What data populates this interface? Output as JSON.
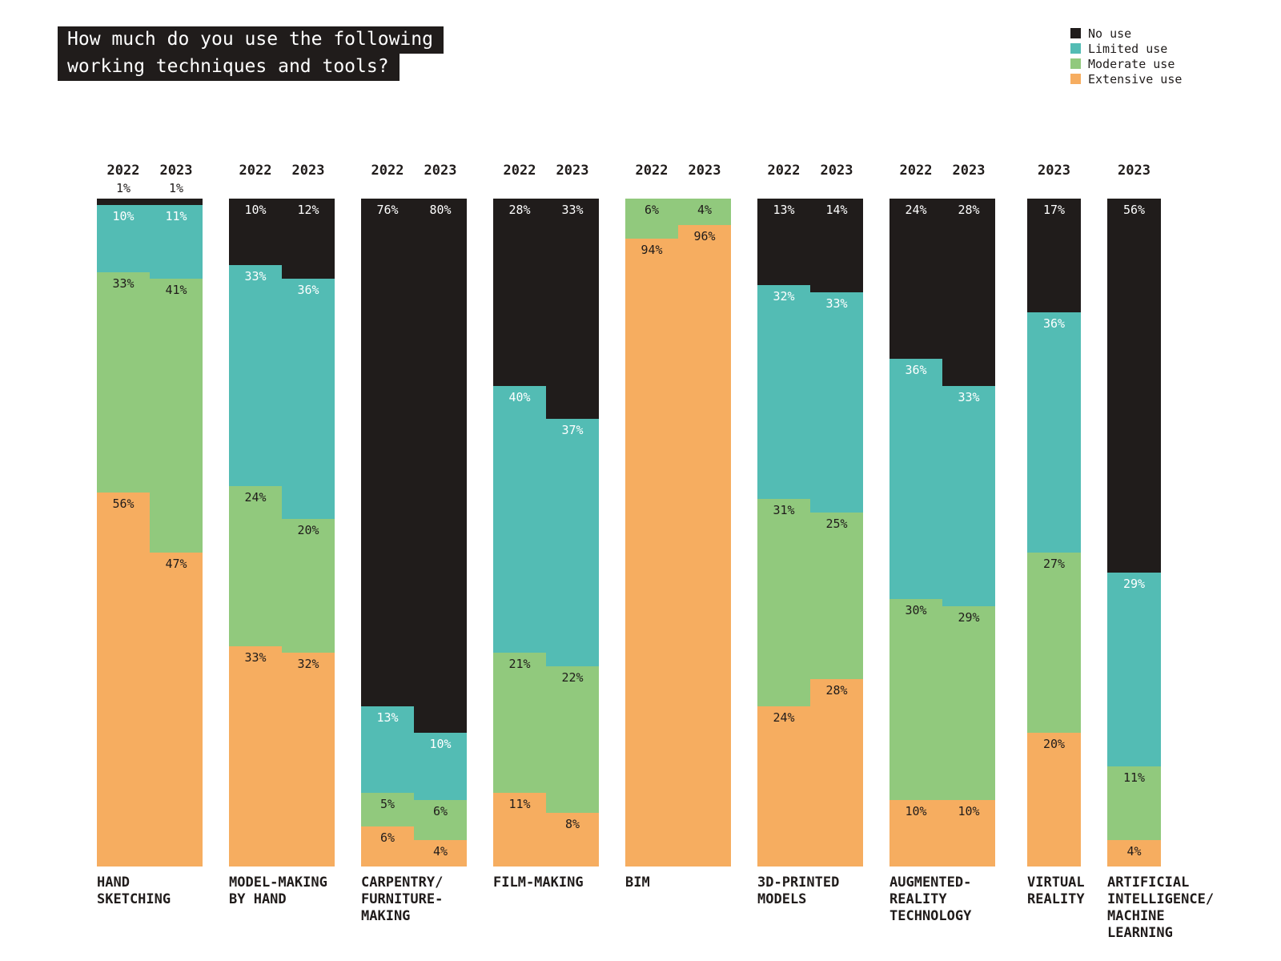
{
  "title": {
    "lines": [
      "How much do you use the following",
      "working techniques and tools?"
    ]
  },
  "chart_data": {
    "type": "bar",
    "stacked": true,
    "orientation": "vertical",
    "title": "How much do you use the following working techniques and tools?",
    "unit": "%",
    "ylim": [
      0,
      100
    ],
    "grid": false,
    "legend_position": "top-right",
    "series_order": [
      "No use",
      "Limited use",
      "Moderate use",
      "Extensive use"
    ],
    "legend": [
      {
        "label": "No use",
        "color": "#201c1b"
      },
      {
        "label": "Limited use",
        "color": "#53bcb4"
      },
      {
        "label": "Moderate use",
        "color": "#91c97d"
      },
      {
        "label": "Extensive use",
        "color": "#f6ad60"
      }
    ],
    "colors": [
      "#201c1b",
      "#53bcb4",
      "#91c97d",
      "#f6ad60"
    ],
    "label_text_on_segment": [
      "#ffffff",
      "#ffffff",
      "#201c1b",
      "#201c1b"
    ],
    "groups": [
      {
        "id": "hand-sketching",
        "label": "HAND SKETCHING",
        "label_lines": [
          "HAND",
          "SKETCHING"
        ],
        "bars": [
          {
            "year": "2022",
            "values": [
              1,
              10,
              33,
              56
            ]
          },
          {
            "year": "2023",
            "values": [
              1,
              11,
              41,
              47
            ]
          }
        ]
      },
      {
        "id": "model-making-by-hand",
        "label": "MODEL-MAKING BY HAND",
        "label_lines": [
          "MODEL-MAKING",
          "BY HAND"
        ],
        "bars": [
          {
            "year": "2022",
            "values": [
              10,
              33,
              24,
              33
            ]
          },
          {
            "year": "2023",
            "values": [
              12,
              36,
              20,
              32
            ]
          }
        ]
      },
      {
        "id": "carpentry-furniture-making",
        "label": "CARPENTRY/FURNITURE-MAKING",
        "label_lines": [
          "CARPENTRY/",
          "FURNITURE-",
          "MAKING"
        ],
        "bars": [
          {
            "year": "2022",
            "values": [
              76,
              13,
              5,
              6
            ]
          },
          {
            "year": "2023",
            "values": [
              80,
              10,
              6,
              4
            ]
          }
        ]
      },
      {
        "id": "film-making",
        "label": "FILM-MAKING",
        "label_lines": [
          "FILM-MAKING"
        ],
        "bars": [
          {
            "year": "2022",
            "values": [
              28,
              40,
              21,
              11
            ]
          },
          {
            "year": "2023",
            "values": [
              33,
              37,
              22,
              8
            ]
          }
        ]
      },
      {
        "id": "bim",
        "label": "BIM",
        "label_lines": [
          "BIM"
        ],
        "bars": [
          {
            "year": "2022",
            "values": [
              0,
              0,
              6,
              94
            ]
          },
          {
            "year": "2023",
            "values": [
              0,
              0,
              4,
              96
            ]
          }
        ]
      },
      {
        "id": "3d-printed-models",
        "label": "3D-PRINTED MODELS",
        "label_lines": [
          "3D-PRINTED",
          "MODELS"
        ],
        "bars": [
          {
            "year": "2022",
            "values": [
              13,
              32,
              31,
              24
            ]
          },
          {
            "year": "2023",
            "values": [
              14,
              33,
              25,
              28
            ]
          }
        ]
      },
      {
        "id": "augmented-reality-technology",
        "label": "AUGMENTED-REALITY TECHNOLOGY",
        "label_lines": [
          "AUGMENTED-",
          "REALITY",
          "TECHNOLOGY"
        ],
        "bars": [
          {
            "year": "2022",
            "values": [
              24,
              36,
              30,
              10
            ]
          },
          {
            "year": "2023",
            "values": [
              28,
              33,
              29,
              10
            ]
          }
        ]
      },
      {
        "id": "virtual-reality",
        "label": "VIRTUAL REALITY",
        "label_lines": [
          "VIRTUAL",
          "REALITY"
        ],
        "bars": [
          {
            "year": "2023",
            "values": [
              17,
              36,
              27,
              20
            ]
          }
        ]
      },
      {
        "id": "artificial-intelligence-machine-learning",
        "label": "ARTIFICIAL INTELLIGENCE/MACHINE LEARNING",
        "label_lines": [
          "ARTIFICIAL",
          "INTELLIGENCE/",
          "MACHINE",
          "LEARNING"
        ],
        "bars": [
          {
            "year": "2023",
            "values": [
              56,
              29,
              11,
              4
            ]
          }
        ]
      }
    ]
  }
}
